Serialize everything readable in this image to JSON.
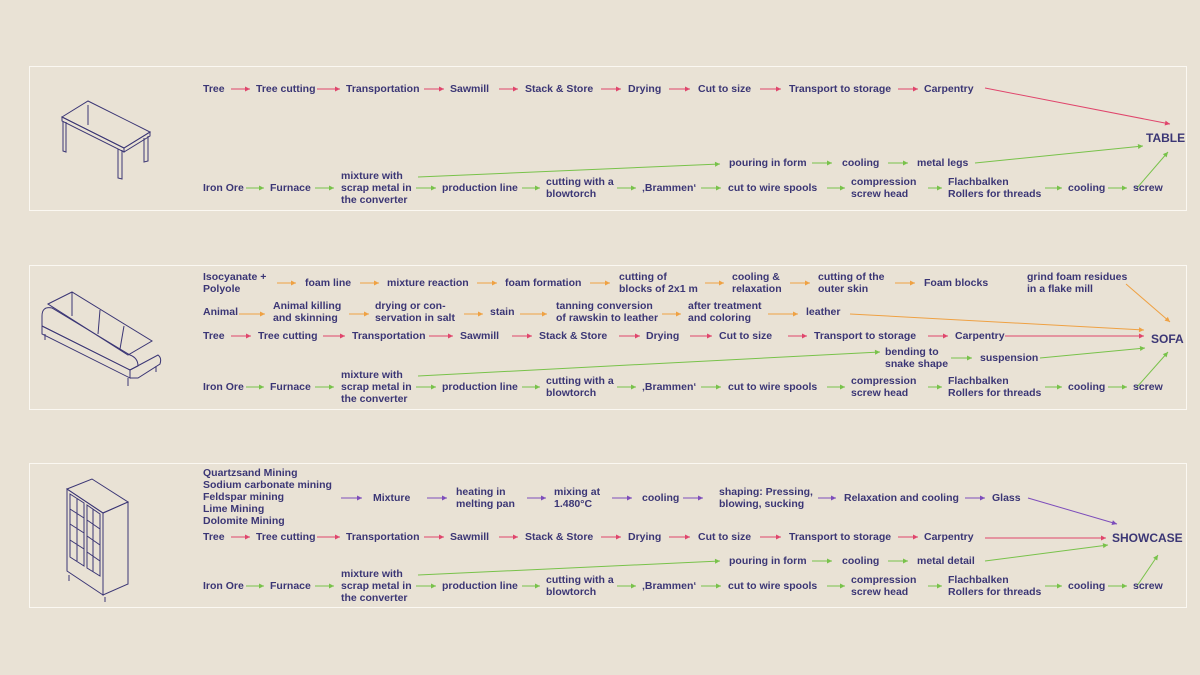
{
  "colors": {
    "background": "#e9e2d5",
    "text": "#3b3675",
    "wood": "#e0456c",
    "metal": "#78c24a",
    "foam": "#efa143",
    "glass": "#7d4dbb",
    "frame": "#fbf8f2"
  },
  "products": {
    "table": "TABLE",
    "sofa": "SOFA",
    "showcase": "SHOWCASE"
  },
  "icons": [
    "table-icon",
    "sofa-icon",
    "showcase-icon"
  ],
  "table": {
    "wood_chain": [
      "Tree",
      "Tree cutting",
      "Transportation",
      "Sawmill",
      "Stack & Store",
      "Drying",
      "Cut to size",
      "Transport to storage",
      "Carpentry"
    ],
    "metal_upper": [
      "pouring in form",
      "cooling",
      "metal legs"
    ],
    "metal_chain": [
      "Iron Ore",
      "Furnace",
      "mixture with\nscrap metal in\nthe converter",
      "production line",
      "cutting with a\nblowtorch",
      "‚Brammen‘",
      "cut to wire spools",
      "compression\nscrew head",
      "Flachbalken\nRollers for threads",
      "cooling",
      "screw"
    ]
  },
  "sofa": {
    "foam_chain": [
      "Isocyanate +\nPolyole",
      "foam line",
      "mixture reaction",
      "foam formation",
      "cutting of\nblocks of 2x1 m",
      "cooling &\nrelaxation",
      "cutting of the\nouter skin",
      "Foam blocks",
      "grind foam residues\nin a flake mill"
    ],
    "leather_chain": [
      "Animal",
      "Animal killing\nand skinning",
      "drying or con-\nservation in salt",
      "stain",
      "tanning conversion\nof rawskin to leather",
      "after treatment\nand coloring",
      "leather"
    ],
    "wood_chain": [
      "Tree",
      "Tree cutting",
      "Transportation",
      "Sawmill",
      "Stack & Store",
      "Drying",
      "Cut to size",
      "Transport to storage",
      "Carpentry"
    ],
    "metal_upper": [
      "bending to\nsnake shape",
      "suspension"
    ],
    "metal_chain": [
      "Iron Ore",
      "Furnace",
      "mixture with\nscrap metal in\nthe converter",
      "production line",
      "cutting with a\nblowtorch",
      "‚Brammen‘",
      "cut to wire spools",
      "compression\nscrew head",
      "Flachbalken\nRollers for threads",
      "cooling",
      "screw"
    ]
  },
  "showcase": {
    "glass_chain": [
      "Quartzsand Mining\nSodium carbonate mining\nFeldspar mining\nLime Mining\nDolomite Mining",
      "Mixture",
      "heating in\nmelting pan",
      "mixing at\n1.480°C",
      "cooling",
      "shaping: Pressing,\nblowing, sucking",
      "Relaxation and cooling",
      "Glass"
    ],
    "wood_chain": [
      "Tree",
      "Tree cutting",
      "Transportation",
      "Sawmill",
      "Stack & Store",
      "Drying",
      "Cut to size",
      "Transport to storage",
      "Carpentry"
    ],
    "metal_upper": [
      "pouring in form",
      "cooling",
      "metal detail"
    ],
    "metal_chain": [
      "Iron Ore",
      "Furnace",
      "mixture with\nscrap metal in\nthe converter",
      "production line",
      "cutting with a\nblowtorch",
      "‚Brammen‘",
      "cut to wire spools",
      "compression\nscrew head",
      "Flachbalken\nRollers for threads",
      "cooling",
      "screw"
    ]
  }
}
